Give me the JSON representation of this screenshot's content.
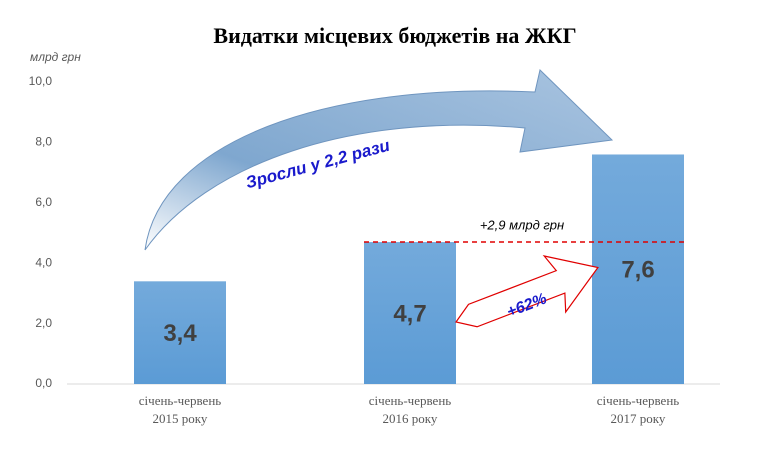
{
  "chart_data": {
    "type": "bar",
    "title": "Видатки місцевих бюджетів на ЖКГ",
    "y_label": "млрд грн",
    "categories": [
      "січень-червень\n2015 року",
      "січень-червень\n2016 року",
      "січень-червень\n2017 року"
    ],
    "values": [
      3.4,
      4.7,
      7.6
    ],
    "value_labels": [
      "3,4",
      "4,7",
      "7,6"
    ],
    "color": "#5b9bd5",
    "ylim": [
      0,
      10
    ],
    "yticks": [
      {
        "value": 0,
        "label": "0,0"
      },
      {
        "value": 2,
        "label": "2,0"
      },
      {
        "value": 4,
        "label": "4,0"
      },
      {
        "value": 6,
        "label": "6,0"
      },
      {
        "value": 8,
        "label": "8,0"
      },
      {
        "value": 10,
        "label": "10,0"
      }
    ],
    "grid": false,
    "annotations": [
      "Зросли у 2,2 рази",
      "+2,9 млрд грн",
      "+62%"
    ]
  }
}
